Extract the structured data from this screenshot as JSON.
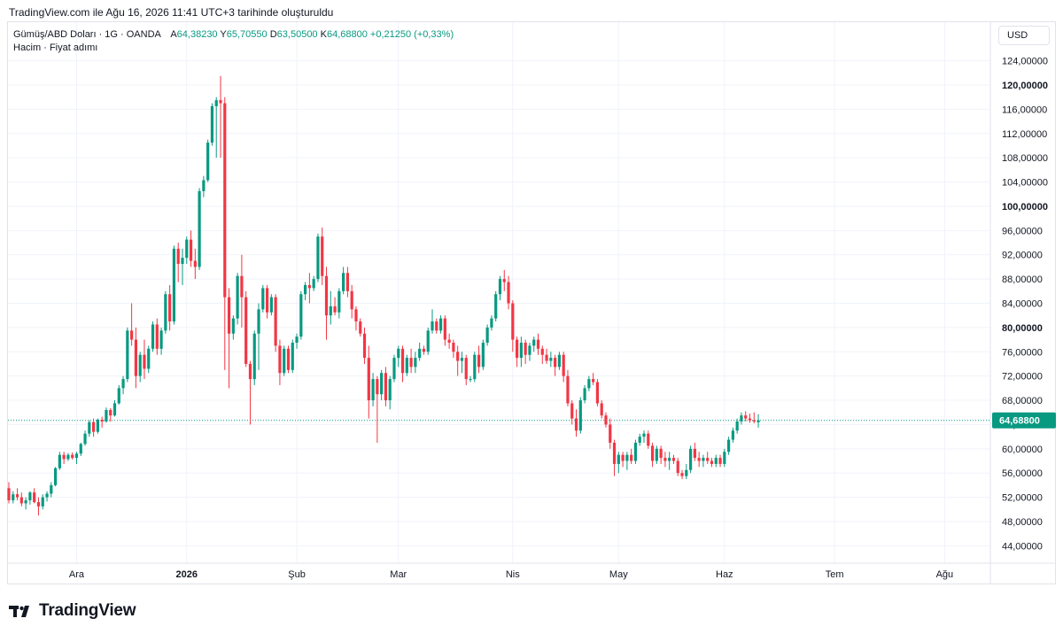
{
  "header": {
    "snapshot_text": "TradingView.com ile Ağu 16, 2026 11:41 UTC+3 tarihinde oluşturuldu"
  },
  "legend": {
    "symbol": "Gümüş/ABD Doları · 1G · OANDA",
    "open_label": "A",
    "open_value": "64,38230",
    "high_label": "Y",
    "high_value": "65,70550",
    "low_label": "D",
    "low_value": "63,50500",
    "close_label": "K",
    "close_value": "64,68800",
    "change": "+0,21250 (+0,33%)",
    "indicator": "Hacim · Fiyat adımı"
  },
  "currency_button": "USD",
  "brand": {
    "name": "TradingView",
    "logo_icon": "tradingview-logo-icon"
  },
  "colors": {
    "up": "#089981",
    "down": "#f23645",
    "grid": "#f0f3fa",
    "text": "#131722",
    "last_price_line": "#089981"
  },
  "chart_data": {
    "type": "candlestick",
    "title": "Gümüş/ABD Doları · 1G · OANDA",
    "currency": "USD",
    "ylim": [
      40,
      128
    ],
    "y_ticks": [
      {
        "v": 44,
        "label": "44,00000",
        "bold": false
      },
      {
        "v": 48,
        "label": "48,00000",
        "bold": false
      },
      {
        "v": 52,
        "label": "52,00000",
        "bold": false
      },
      {
        "v": 56,
        "label": "56,00000",
        "bold": false
      },
      {
        "v": 60,
        "label": "60,00000",
        "bold": false
      },
      {
        "v": 64,
        "label": "64,00000",
        "bold": false
      },
      {
        "v": 68,
        "label": "68,00000",
        "bold": false
      },
      {
        "v": 72,
        "label": "72,00000",
        "bold": false
      },
      {
        "v": 76,
        "label": "76,00000",
        "bold": false
      },
      {
        "v": 80,
        "label": "80,00000",
        "bold": true
      },
      {
        "v": 84,
        "label": "84,00000",
        "bold": false
      },
      {
        "v": 88,
        "label": "88,00000",
        "bold": false
      },
      {
        "v": 92,
        "label": "92,00000",
        "bold": false
      },
      {
        "v": 96,
        "label": "96,00000",
        "bold": false
      },
      {
        "v": 100,
        "label": "100,00000",
        "bold": true
      },
      {
        "v": 104,
        "label": "104,00000",
        "bold": false
      },
      {
        "v": 108,
        "label": "108,00000",
        "bold": false
      },
      {
        "v": 112,
        "label": "112,00000",
        "bold": false
      },
      {
        "v": 116,
        "label": "116,00000",
        "bold": false
      },
      {
        "v": 120,
        "label": "120,00000",
        "bold": true
      },
      {
        "v": 124,
        "label": "124,00000",
        "bold": false
      }
    ],
    "x_labels": [
      {
        "i": 16,
        "label": "Ara",
        "bold": false
      },
      {
        "i": 42,
        "label": "2026",
        "bold": true
      },
      {
        "i": 68,
        "label": "Şub",
        "bold": false
      },
      {
        "i": 92,
        "label": "Mar",
        "bold": false
      },
      {
        "i": 119,
        "label": "Nis",
        "bold": false
      },
      {
        "i": 144,
        "label": "May",
        "bold": false
      },
      {
        "i": 169,
        "label": "Haz",
        "bold": false
      },
      {
        "i": 195,
        "label": "Tem",
        "bold": false
      },
      {
        "i": 221,
        "label": "Ağu",
        "bold": false
      }
    ],
    "last_price": {
      "value": 64.688,
      "label": "64,68800"
    },
    "ohlc": [
      [
        53.5,
        54.5,
        51,
        51.5
      ],
      [
        51.5,
        53,
        51,
        52.5
      ],
      [
        52.5,
        53.5,
        51.5,
        52
      ],
      [
        52,
        52.8,
        50.5,
        51
      ],
      [
        51,
        52,
        50,
        51.5
      ],
      [
        51.5,
        53,
        50.8,
        52.8
      ],
      [
        52.8,
        53.5,
        51,
        51.2
      ],
      [
        51.2,
        52,
        49,
        50.5
      ],
      [
        50.5,
        52.5,
        50,
        52
      ],
      [
        52,
        53,
        51.3,
        52.6
      ],
      [
        52.6,
        54.5,
        52,
        54
      ],
      [
        54,
        57,
        53.8,
        56.8
      ],
      [
        56.8,
        59.5,
        56.5,
        59
      ],
      [
        59,
        59.5,
        57.5,
        58.3
      ],
      [
        58.3,
        59.3,
        58,
        59
      ],
      [
        59,
        59.4,
        58.2,
        58.5
      ],
      [
        58.5,
        59.5,
        57.5,
        59.2
      ],
      [
        59.2,
        61,
        58.8,
        60.8
      ],
      [
        60.8,
        63,
        60.5,
        62.5
      ],
      [
        62.5,
        64.7,
        62,
        64.4
      ],
      [
        64.4,
        65,
        62,
        62.8
      ],
      [
        62.8,
        65,
        62.5,
        64.8
      ],
      [
        64.8,
        65.3,
        63.5,
        64.5
      ],
      [
        64.5,
        66.8,
        64.3,
        66.4
      ],
      [
        66.4,
        66.7,
        64.5,
        65.5
      ],
      [
        65.5,
        68,
        65.3,
        67.5
      ],
      [
        67.5,
        70.5,
        67.3,
        70
      ],
      [
        70,
        72,
        69,
        71.5
      ],
      [
        71.5,
        80,
        71,
        79.5
      ],
      [
        79.5,
        84,
        77,
        78
      ],
      [
        78,
        80,
        70,
        72
      ],
      [
        72,
        76,
        71,
        75.5
      ],
      [
        75.5,
        78,
        71.5,
        73.2
      ],
      [
        73.2,
        77,
        72.5,
        76.5
      ],
      [
        76.5,
        81,
        76,
        80.5
      ],
      [
        80.5,
        81.5,
        75.5,
        76.5
      ],
      [
        76.5,
        80,
        75.5,
        79.5
      ],
      [
        79.5,
        86,
        79,
        85.5
      ],
      [
        85.5,
        87,
        79.5,
        81
      ],
      [
        81,
        93.5,
        80.5,
        93
      ],
      [
        93,
        94,
        87.5,
        90.5
      ],
      [
        90.5,
        93,
        87,
        91.5
      ],
      [
        91.5,
        95,
        90.5,
        94.5
      ],
      [
        94.5,
        96,
        90,
        91
      ],
      [
        91,
        93,
        88,
        90
      ],
      [
        90,
        103,
        89.5,
        102.5
      ],
      [
        102.5,
        105,
        101.5,
        104.3
      ],
      [
        104.3,
        111,
        104,
        110.5
      ],
      [
        110.5,
        117,
        110,
        116.5
      ],
      [
        116.5,
        118,
        108,
        117.5
      ],
      [
        117.5,
        121.5,
        108,
        117
      ],
      [
        117,
        118,
        73,
        85
      ],
      [
        85,
        86.5,
        70,
        79
      ],
      [
        79,
        82,
        78,
        81.5
      ],
      [
        81.5,
        89,
        80.5,
        88.5
      ],
      [
        88.5,
        92,
        80,
        85
      ],
      [
        85,
        86,
        73.5,
        74
      ],
      [
        74,
        74.5,
        64,
        71.5
      ],
      [
        71.5,
        79.5,
        70.5,
        79
      ],
      [
        79,
        84,
        73,
        83
      ],
      [
        83,
        87,
        82.5,
        86.5
      ],
      [
        86.5,
        87,
        81.5,
        82.5
      ],
      [
        82.5,
        85.5,
        82,
        85
      ],
      [
        85,
        85.5,
        76,
        77
      ],
      [
        77,
        78,
        70.5,
        72.5
      ],
      [
        72.5,
        77,
        72,
        76.5
      ],
      [
        76.5,
        77,
        72.5,
        73
      ],
      [
        73,
        78,
        72.5,
        77.5
      ],
      [
        77.5,
        79,
        76.5,
        78.5
      ],
      [
        78.5,
        86,
        78,
        85.5
      ],
      [
        85.5,
        87.5,
        84.5,
        87
      ],
      [
        87,
        89,
        84,
        86.5
      ],
      [
        86.5,
        88.5,
        86,
        88
      ],
      [
        88,
        95.5,
        87.5,
        95
      ],
      [
        95,
        96.5,
        87,
        88.5
      ],
      [
        88.5,
        90,
        78,
        82
      ],
      [
        82,
        86,
        80.5,
        83.5
      ],
      [
        83.5,
        85,
        82,
        82.5
      ],
      [
        82.5,
        86.5,
        81.5,
        86
      ],
      [
        86,
        90,
        85.5,
        89
      ],
      [
        89,
        90,
        85,
        86
      ],
      [
        86,
        87,
        81.5,
        83
      ],
      [
        83,
        83.5,
        79.5,
        81
      ],
      [
        81,
        81.5,
        78.5,
        79
      ],
      [
        79,
        80,
        74,
        75
      ],
      [
        75,
        77,
        65,
        68
      ],
      [
        68,
        72.5,
        67,
        71.5
      ],
      [
        71.5,
        72,
        61,
        69
      ],
      [
        69,
        73,
        68,
        72.5
      ],
      [
        72.5,
        73.5,
        67,
        68
      ],
      [
        68,
        72,
        66.5,
        71.5
      ],
      [
        71.5,
        75.5,
        71,
        75
      ],
      [
        75,
        77,
        73.5,
        76.5
      ],
      [
        76.5,
        77,
        71,
        72.5
      ],
      [
        72.5,
        75.5,
        72,
        75
      ],
      [
        75,
        76.5,
        72.5,
        73.5
      ],
      [
        73.5,
        76,
        72.5,
        75
      ],
      [
        75,
        77.5,
        74.5,
        76.5
      ],
      [
        76.5,
        77,
        75.5,
        76
      ],
      [
        76,
        80,
        75.5,
        79.5
      ],
      [
        79.5,
        83,
        79,
        81
      ],
      [
        81,
        81.5,
        79,
        79.5
      ],
      [
        79.5,
        82,
        79,
        81.5
      ],
      [
        81.5,
        82,
        77,
        78
      ],
      [
        78,
        79,
        76.5,
        77.5
      ],
      [
        77.5,
        78,
        75,
        76
      ],
      [
        76,
        77,
        72,
        74.5
      ],
      [
        74.5,
        76,
        72.5,
        75
      ],
      [
        75,
        75.5,
        70.5,
        71.5
      ],
      [
        71.5,
        72,
        71,
        71.5
      ],
      [
        71.5,
        76,
        71,
        75.5
      ],
      [
        75.5,
        77,
        72.5,
        73.5
      ],
      [
        73.5,
        78,
        73,
        77.5
      ],
      [
        77.5,
        80.5,
        77,
        80
      ],
      [
        80,
        82,
        79.5,
        81.5
      ],
      [
        81.5,
        86,
        81,
        85.5
      ],
      [
        85.5,
        88.5,
        84.5,
        88
      ],
      [
        88,
        89.5,
        86,
        87.5
      ],
      [
        87.5,
        88.5,
        83,
        84
      ],
      [
        84,
        84.5,
        76,
        78
      ],
      [
        78,
        78.5,
        73.5,
        75
      ],
      [
        75,
        78.5,
        73.5,
        77.5
      ],
      [
        77.5,
        78,
        74,
        75.5
      ],
      [
        75.5,
        77.5,
        74.5,
        77
      ],
      [
        77,
        78.5,
        76,
        78
      ],
      [
        78,
        79,
        75.5,
        76.5
      ],
      [
        76.5,
        77,
        74,
        75.5
      ],
      [
        75.5,
        76.5,
        74,
        74.5
      ],
      [
        74.5,
        76,
        73.5,
        75
      ],
      [
        75,
        75.5,
        72,
        73.5
      ],
      [
        73.5,
        76,
        73,
        75.5
      ],
      [
        75.5,
        76,
        71,
        72
      ],
      [
        72,
        73,
        67,
        67.5
      ],
      [
        67.5,
        68,
        64,
        65
      ],
      [
        65,
        66.5,
        62,
        63
      ],
      [
        63,
        68.5,
        62.5,
        68
      ],
      [
        68,
        70.5,
        67.5,
        70
      ],
      [
        70,
        72,
        69.5,
        71.5
      ],
      [
        71.5,
        72.5,
        70.5,
        71
      ],
      [
        71,
        71.5,
        67,
        67.5
      ],
      [
        67.5,
        68,
        65,
        65.5
      ],
      [
        65.5,
        66,
        63.5,
        64
      ],
      [
        64,
        65,
        60,
        61
      ],
      [
        61,
        61.5,
        55.5,
        57.5
      ],
      [
        57.5,
        59.5,
        56,
        59
      ],
      [
        59,
        59.5,
        57,
        58
      ],
      [
        58,
        59.5,
        56.5,
        59
      ],
      [
        59,
        60,
        57.5,
        58
      ],
      [
        58,
        61.5,
        57.5,
        61
      ],
      [
        61,
        62.5,
        60.5,
        62
      ],
      [
        62,
        63,
        61,
        62.5
      ],
      [
        62.5,
        63,
        60,
        60.5
      ],
      [
        60.5,
        61,
        57,
        58
      ],
      [
        58,
        60.5,
        57.5,
        60
      ],
      [
        60,
        60.5,
        57.5,
        58.5
      ],
      [
        58.5,
        59.5,
        57,
        58
      ],
      [
        58,
        59.5,
        56.5,
        58.5
      ],
      [
        58.5,
        59,
        57.5,
        58
      ],
      [
        58,
        58.5,
        55.5,
        56
      ],
      [
        56,
        56.5,
        55,
        55.5
      ],
      [
        55.5,
        57.5,
        55,
        56.5
      ],
      [
        56.5,
        60.5,
        56,
        60
      ],
      [
        60,
        61,
        58,
        58.5
      ],
      [
        58.5,
        59.5,
        57,
        58
      ],
      [
        58,
        59,
        57,
        58.5
      ],
      [
        58.5,
        59.5,
        57.5,
        58
      ],
      [
        58,
        58.5,
        57,
        57.5
      ],
      [
        57.5,
        59,
        57,
        58.5
      ],
      [
        58.5,
        59,
        57,
        57.5
      ],
      [
        57.5,
        60,
        57,
        59.5
      ],
      [
        59.5,
        62,
        59,
        61.5
      ],
      [
        61.5,
        63.5,
        61,
        63
      ],
      [
        63,
        65,
        62.5,
        64.5
      ],
      [
        64.5,
        66,
        64,
        65.5
      ],
      [
        65.5,
        66.2,
        64.5,
        65
      ],
      [
        65,
        65.8,
        64.3,
        64.7
      ],
      [
        64.7,
        66,
        64.2,
        64.5
      ],
      [
        64.38,
        65.7,
        63.5,
        64.69
      ]
    ]
  }
}
